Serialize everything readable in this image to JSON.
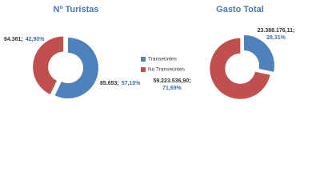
{
  "chart_data": [
    {
      "type": "pie",
      "title": "Nº Turistas",
      "values": [
        85653,
        64361
      ],
      "value_labels": [
        "85.653;",
        "64.361;"
      ],
      "percents": [
        57.1,
        42.9
      ],
      "percent_labels": [
        "57,10%",
        "42,90%"
      ],
      "colors": [
        "#4f81bd",
        "#c0504d"
      ]
    },
    {
      "type": "pie",
      "title": "Gasto Total",
      "values": [
        23388176.11,
        59223536.9
      ],
      "value_labels": [
        "23.388.176,11;",
        "59.223.536,90;"
      ],
      "percents": [
        28.31,
        71.69
      ],
      "percent_labels": [
        "28,31%",
        "71,69%"
      ],
      "colors": [
        "#4f81bd",
        "#c0504d"
      ]
    }
  ],
  "legend": {
    "labels": [
      "Transeúntes",
      "No Transeúntes"
    ],
    "colors": [
      "#4f81bd",
      "#c0504d"
    ]
  }
}
